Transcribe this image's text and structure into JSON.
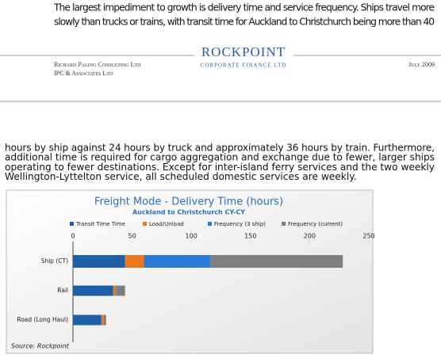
{
  "top_text": {
    "lines": [
      "The largest impediment to growth is delivery time and service frequency. Ships travel more",
      "slowly than trucks or trains, with transit time for Auckland to Christchurch being more than 40"
    ]
  },
  "footer": {
    "logo": "ROCKPOINT",
    "logo_sub": "CORPORATE FINANCE LTD",
    "left": [
      "Richard Paling Consulting Ltd",
      "IPC & Associates Ltd"
    ],
    "date": "July 2009"
  },
  "body": {
    "lines": [
      "hours by ship against 24 hours by truck and approximately 36 hours by train. Furthermore,",
      "additional time is required for cargo aggregation and exchange due to fewer, larger ships",
      "operating to fewer destinations. Except for inter-island ferry services and the two weekly",
      "Wellington-Lyttelton service, all scheduled domestic services are weekly."
    ]
  },
  "chart_data": {
    "type": "bar",
    "orientation": "horizontal",
    "stacked": true,
    "title": "Freight Mode - Delivery Time (hours)",
    "subtitle": "Auckland to Christchurch CY-CY",
    "source": "Source: Rockpoint",
    "legend": "top",
    "categories": [
      "Ship (CT)",
      "Rail",
      "Road (Long Haul)"
    ],
    "series": [
      {
        "name": "Transit Time Time",
        "color": "#1f5ea8",
        "values": [
          44,
          34,
          24
        ]
      },
      {
        "name": "Load/Unload",
        "color": "#e8791f",
        "values": [
          16,
          3,
          2
        ]
      },
      {
        "name": "Frequency (3 ship)",
        "color": "#2b7bd6",
        "values": [
          56,
          1,
          0
        ]
      },
      {
        "name": "Frequency (current)",
        "color": "#7f7f7f",
        "values": [
          112,
          6,
          2
        ]
      }
    ],
    "xlim": [
      0,
      250
    ],
    "xticks": [
      0,
      50,
      100,
      150,
      200,
      250
    ]
  }
}
